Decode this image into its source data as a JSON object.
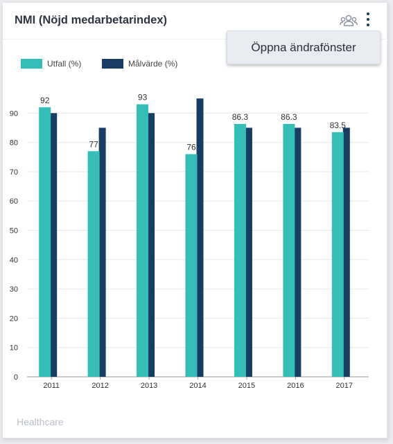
{
  "card": {
    "title": "NMI (Nöjd medarbetarindex)",
    "footer": "Healthcare",
    "menu_item": "Öppna ändrafönster",
    "icons": [
      "people-icon",
      "kebab-menu-icon"
    ]
  },
  "colors": {
    "utfall": "#35bdb7",
    "malvarde": "#173d63",
    "grid": "#e8e8e8",
    "axis": "#9a9a9a",
    "text": "#333333"
  },
  "chart_data": {
    "type": "bar",
    "categories": [
      "2011",
      "2012",
      "2013",
      "2014",
      "2015",
      "2016",
      "2017"
    ],
    "series": [
      {
        "name": "Utfall (%)",
        "values": [
          92,
          77,
          93,
          76,
          86.3,
          86.3,
          83.5
        ],
        "labels": [
          "92",
          "77",
          "93",
          "76",
          "86.3",
          "86.3",
          "83.5"
        ]
      },
      {
        "name": "Målvärde (%)",
        "values": [
          90,
          85,
          90,
          95,
          85,
          85,
          85
        ]
      }
    ],
    "yticks": [
      0,
      10,
      20,
      30,
      40,
      50,
      60,
      70,
      80,
      90
    ],
    "ylim": [
      0,
      100
    ],
    "legend": "top-left",
    "grid": true
  }
}
